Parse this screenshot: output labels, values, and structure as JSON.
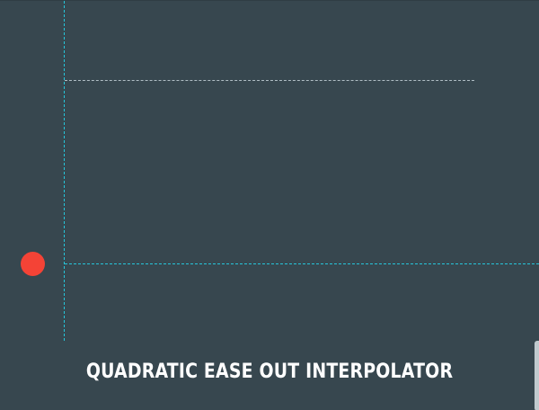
{
  "title": "QUADRATIC EASE OUT INTERPOLATOR",
  "colors": {
    "background": "#37474f",
    "axis": "#26c6da",
    "target_line": "#b0bec5",
    "dot": "#f44336"
  }
}
